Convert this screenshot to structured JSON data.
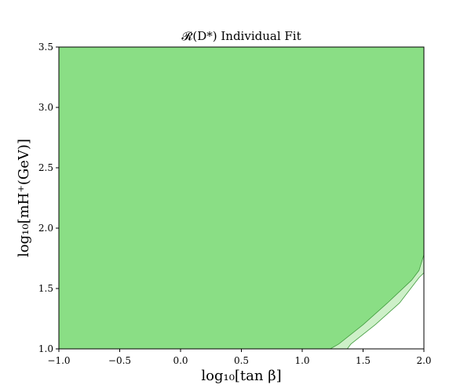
{
  "chart_data": {
    "type": "area",
    "title": "𝓡(D*) Individual Fit",
    "xlabel": "log₁₀[tan β]",
    "ylabel": "log₁₀[mH⁺(GeV)]",
    "xlim": [
      -1.0,
      2.0
    ],
    "ylim": [
      1.0,
      3.5
    ],
    "x_ticks": [
      -1.0,
      -0.5,
      0.0,
      0.5,
      1.0,
      1.5,
      2.0
    ],
    "x_tick_labels": [
      "−1.0",
      "−0.5",
      "0.0",
      "0.5",
      "1.0",
      "1.5",
      "2.0"
    ],
    "y_ticks": [
      1.0,
      1.5,
      2.0,
      2.5,
      3.0,
      3.5
    ],
    "y_tick_labels": [
      "1.0",
      "1.5",
      "2.0",
      "2.5",
      "3.0",
      "3.5"
    ],
    "grid": false,
    "legend": "none",
    "regions": [
      {
        "fill": "#8ade85",
        "stroke": "#3f9a3c",
        "boundary": [
          [
            1.23,
            1.0
          ],
          [
            1.3,
            1.04
          ],
          [
            1.5,
            1.2
          ],
          [
            1.7,
            1.38
          ],
          [
            1.9,
            1.57
          ],
          [
            1.96,
            1.65
          ],
          [
            2.0,
            1.78
          ]
        ]
      },
      {
        "fill": "#cdf0c8",
        "stroke": "#3f9a3c",
        "boundary": [
          [
            1.37,
            1.0
          ],
          [
            1.4,
            1.04
          ],
          [
            1.6,
            1.2
          ],
          [
            1.8,
            1.38
          ],
          [
            1.96,
            1.59
          ],
          [
            2.0,
            1.63
          ]
        ]
      }
    ]
  }
}
